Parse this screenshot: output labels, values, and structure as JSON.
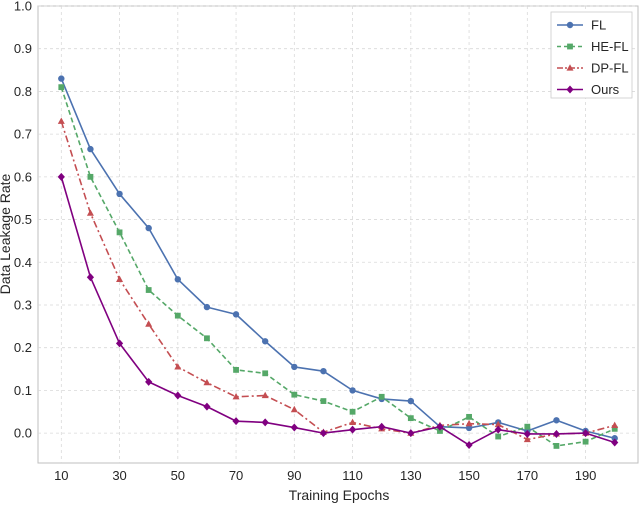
{
  "chart_data": {
    "type": "line",
    "title": "",
    "xlabel": "Training Epochs",
    "ylabel": "Data Leakage Rate",
    "xlim": [
      2,
      208
    ],
    "ylim": [
      -0.07,
      1.0
    ],
    "x_ticks": [
      10,
      30,
      50,
      70,
      90,
      110,
      130,
      150,
      170,
      190
    ],
    "y_ticks": [
      0.0,
      0.1,
      0.2,
      0.3,
      0.4,
      0.5,
      0.6,
      0.7,
      0.8,
      0.9,
      1.0
    ],
    "y_tick_labels": [
      "0.0",
      "0.1",
      "0.2",
      "0.3",
      "0.4",
      "0.5",
      "0.6",
      "0.7",
      "0.8",
      "0.9",
      "1.0"
    ],
    "grid": true,
    "legend_position": "top-right",
    "x": [
      10,
      20,
      30,
      40,
      50,
      60,
      70,
      80,
      90,
      100,
      110,
      120,
      130,
      140,
      150,
      160,
      170,
      180,
      190,
      200
    ],
    "series": [
      {
        "name": "FL",
        "color": "#4c72b0",
        "marker": "circle",
        "linestyle": "solid",
        "values": [
          0.83,
          0.665,
          0.56,
          0.48,
          0.36,
          0.295,
          0.278,
          0.215,
          0.155,
          0.145,
          0.1,
          0.08,
          0.075,
          0.015,
          0.012,
          0.025,
          0.005,
          0.03,
          0.005,
          -0.012
        ]
      },
      {
        "name": "HE-FL",
        "color": "#55a868",
        "marker": "square",
        "linestyle": "dashed",
        "values": [
          0.81,
          0.6,
          0.47,
          0.335,
          0.275,
          0.222,
          0.148,
          0.14,
          0.09,
          0.075,
          0.05,
          0.085,
          0.035,
          0.005,
          0.038,
          -0.008,
          0.015,
          -0.03,
          -0.02,
          0.01
        ]
      },
      {
        "name": "DP-FL",
        "color": "#c44e52",
        "marker": "triangle",
        "linestyle": "dashdot",
        "values": [
          0.73,
          0.515,
          0.36,
          0.255,
          0.155,
          0.118,
          0.085,
          0.088,
          0.055,
          0.002,
          0.025,
          0.01,
          0.0,
          0.018,
          0.022,
          0.02,
          -0.015,
          -0.002,
          0.0,
          0.018
        ]
      },
      {
        "name": "Ours",
        "color": "#800080",
        "marker": "diamond",
        "linestyle": "solid",
        "values": [
          0.6,
          0.365,
          0.21,
          0.12,
          0.088,
          0.062,
          0.028,
          0.025,
          0.013,
          0.0,
          0.008,
          0.015,
          0.0,
          0.015,
          -0.028,
          0.008,
          -0.002,
          -0.002,
          0.0,
          -0.022
        ]
      }
    ]
  }
}
